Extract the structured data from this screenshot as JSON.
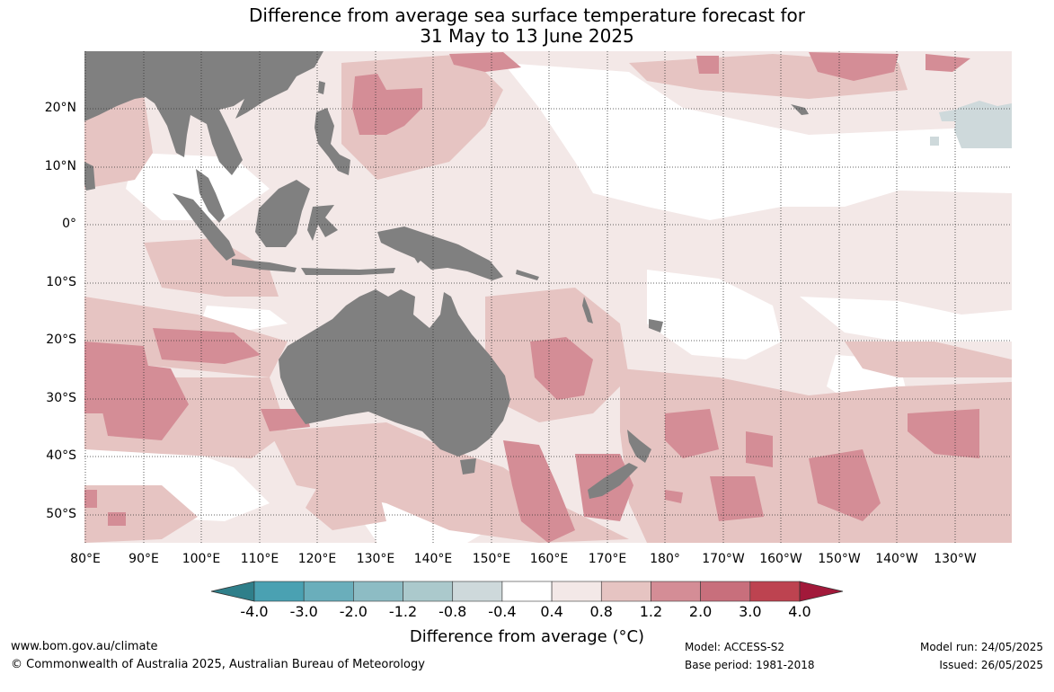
{
  "title": {
    "line1": "Difference from average sea surface temperature forecast for",
    "line2": "31 May to 13 June 2025"
  },
  "map": {
    "lat_labels": [
      "20°N",
      "10°N",
      "0°",
      "10°S",
      "20°S",
      "30°S",
      "40°S",
      "50°S"
    ],
    "lon_labels": [
      "80°E",
      "90°E",
      "100°E",
      "110°E",
      "120°E",
      "130°E",
      "140°E",
      "150°E",
      "160°E",
      "170°E",
      "180°",
      "170°W",
      "160°W",
      "150°W",
      "140°W",
      "130°W"
    ],
    "land_color": "#808080",
    "grid": "dotted"
  },
  "colorbar": {
    "tick_labels": [
      "-4.0",
      "-3.0",
      "-2.0",
      "-1.2",
      "-0.8",
      "-0.4",
      "0.4",
      "0.8",
      "1.2",
      "2.0",
      "3.0",
      "4.0"
    ],
    "colors": [
      "#2f7f8a",
      "#4aa1b2",
      "#6aaebb",
      "#8dbcc4",
      "#abc9cc",
      "#ced9db",
      "#ffffff",
      "#f3e8e7",
      "#e6c4c2",
      "#d48d96",
      "#c86f7c",
      "#bd4350",
      "#a2193a"
    ],
    "label": "Difference from average (°C)"
  },
  "footer": {
    "website": "www.bom.gov.au/climate",
    "copyright": "© Commonwealth of Australia 2025, Australian Bureau of Meteorology",
    "model": "Model: ACCESS-S2",
    "base_period": "Base period: 1981-2018",
    "model_run": "Model run: 24/05/2025",
    "issued": "Issued: 26/05/2025"
  }
}
